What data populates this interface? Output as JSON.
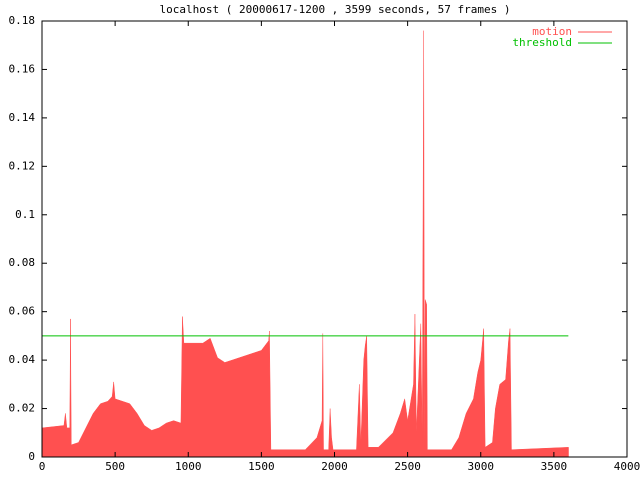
{
  "chart_data": {
    "type": "area",
    "title": "localhost ( 20000617-1200 , 3599 seconds, 57 frames )",
    "xlim": [
      0,
      4000
    ],
    "xticks": [
      0,
      500,
      1000,
      1500,
      2000,
      2500,
      3000,
      3500,
      4000
    ],
    "ylim": [
      0,
      0.18
    ],
    "yticks": [
      0,
      0.02,
      0.04,
      0.06,
      0.08,
      0.1,
      0.12,
      0.14,
      0.16,
      0.18
    ],
    "legend": "top-right",
    "series": [
      {
        "name": "motion",
        "color": "#ff5050",
        "style": "area",
        "x": [
          0,
          150,
          160,
          170,
          190,
          195,
          200,
          250,
          300,
          350,
          400,
          450,
          480,
          490,
          500,
          550,
          600,
          650,
          700,
          750,
          800,
          850,
          900,
          950,
          960,
          970,
          1100,
          1150,
          1200,
          1250,
          1300,
          1400,
          1500,
          1550,
          1555,
          1565,
          1800,
          1880,
          1915,
          1920,
          1925,
          1960,
          1970,
          1980,
          1990,
          2150,
          2170,
          2180,
          2200,
          2210,
          2220,
          2230,
          2300,
          2400,
          2450,
          2480,
          2500,
          2540,
          2550,
          2560,
          2590,
          2600,
          2610,
          2615,
          2620,
          2630,
          2635,
          2800,
          2850,
          2900,
          2950,
          2980,
          3000,
          3020,
          3030,
          3080,
          3100,
          3130,
          3170,
          3190,
          3200,
          3210,
          3600
        ],
        "values": [
          0.012,
          0.013,
          0.018,
          0.012,
          0.012,
          0.057,
          0.005,
          0.006,
          0.012,
          0.018,
          0.022,
          0.023,
          0.025,
          0.031,
          0.024,
          0.023,
          0.022,
          0.018,
          0.013,
          0.011,
          0.012,
          0.014,
          0.015,
          0.014,
          0.058,
          0.047,
          0.047,
          0.049,
          0.041,
          0.039,
          0.04,
          0.042,
          0.044,
          0.048,
          0.052,
          0.003,
          0.003,
          0.008,
          0.015,
          0.051,
          0.003,
          0.003,
          0.02,
          0.008,
          0.003,
          0.003,
          0.03,
          0.005,
          0.04,
          0.046,
          0.05,
          0.004,
          0.004,
          0.01,
          0.018,
          0.024,
          0.015,
          0.03,
          0.059,
          0.01,
          0.055,
          0.005,
          0.176,
          0.004,
          0.065,
          0.063,
          0.003,
          0.003,
          0.008,
          0.018,
          0.024,
          0.035,
          0.04,
          0.053,
          0.004,
          0.006,
          0.02,
          0.03,
          0.032,
          0.048,
          0.053,
          0.003,
          0.004
        ]
      },
      {
        "name": "threshold",
        "color": "#00c000",
        "style": "line",
        "x": [
          0,
          3599
        ],
        "values": [
          0.05,
          0.05
        ]
      }
    ]
  }
}
